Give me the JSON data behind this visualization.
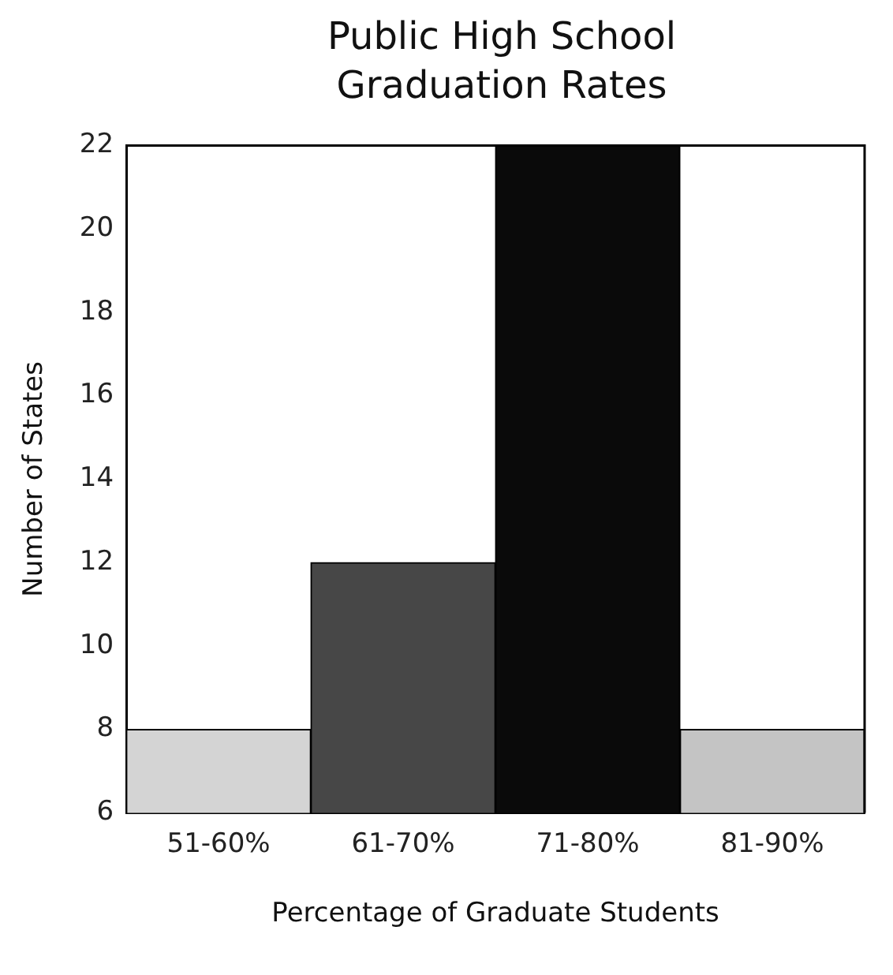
{
  "chart_data": {
    "type": "bar",
    "title": "Public High School Graduation Rates",
    "xlabel": "Percentage of Graduate Students",
    "ylabel": "Number of States",
    "categories": [
      "51-60%",
      "61-70%",
      "71-80%",
      "81-90%"
    ],
    "values": [
      8,
      12,
      22,
      8
    ],
    "colors": [
      "#d4d4d4",
      "#474747",
      "#0a0a0a",
      "#c4c4c4"
    ],
    "ylim": [
      6,
      22
    ],
    "yticks": [
      6,
      8,
      10,
      12,
      14,
      16,
      18,
      20,
      22
    ],
    "grid": false,
    "legend": false
  }
}
